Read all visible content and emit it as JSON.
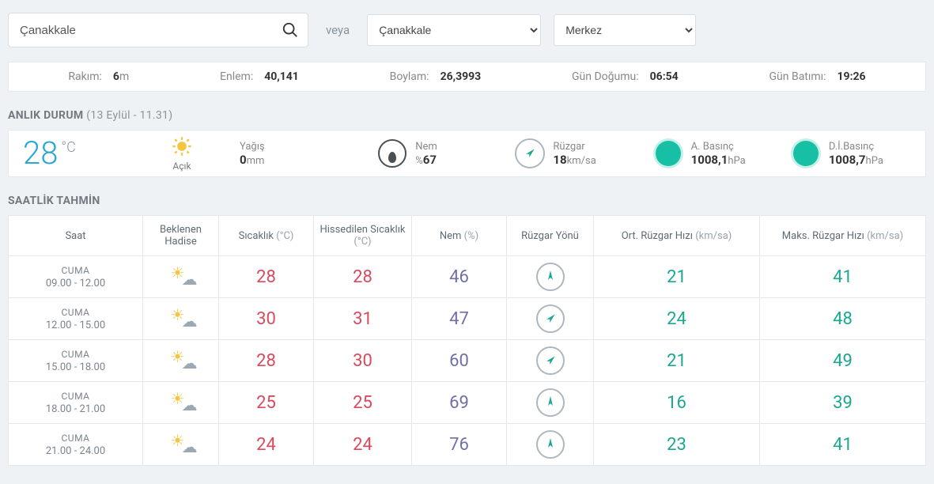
{
  "colors": {
    "page_bg": "#eef2f5",
    "panel_bg": "#ffffff",
    "border": "#e3e8ec",
    "text": "#666666",
    "accent_blue": "#2aa7d6",
    "temp_red": "#d94a5c",
    "humidity_purple": "#6f6fa6",
    "wind_teal": "#1aa890",
    "pressure_dot": "#17bfa4",
    "wind_arrow": "#1aa890"
  },
  "search": {
    "value": "Çanakkale"
  },
  "or_label": "veya",
  "province": {
    "selected": "Çanakkale"
  },
  "district": {
    "selected": "Merkez"
  },
  "geo": {
    "rakim": {
      "label": "Rakım:",
      "value": "6",
      "unit": "m"
    },
    "enlem": {
      "label": "Enlem:",
      "value": "40,141",
      "unit": ""
    },
    "boylam": {
      "label": "Boylam:",
      "value": "26,3993",
      "unit": ""
    },
    "gundogumu": {
      "label": "Gün Doğumu:",
      "value": "06:54",
      "unit": ""
    },
    "gunbatimi": {
      "label": "Gün Batımı:",
      "value": "19:26",
      "unit": ""
    }
  },
  "current": {
    "title": "ANLIK DURUM",
    "subtitle": "(13 Eylül - 11.31)",
    "temp": "28",
    "temp_unit": "°C",
    "cond_icon": "sun",
    "cond_text": "Açık",
    "precip": {
      "label": "Yağış",
      "value": "0",
      "unit": "mm"
    },
    "humidity": {
      "label": "Nem",
      "prefix": "%",
      "value": "67"
    },
    "wind": {
      "label": "Rüzgar",
      "value": "18",
      "unit": "km/sa",
      "dir_deg": 45
    },
    "pressure_a": {
      "label": "A. Basınç",
      "value": "1008,1",
      "unit": "hPa"
    },
    "pressure_d": {
      "label": "D.İ.Basınç",
      "value": "1008,7",
      "unit": "hPa"
    }
  },
  "hourly": {
    "title": "SAATLİK TAHMİN",
    "headers": {
      "saat": "Saat",
      "hadise": "Beklenen Hadise",
      "sicaklik": "Sıcaklık",
      "sicaklik_u": "(°C)",
      "hissedilen": "Hissedilen Sıcaklık",
      "hissedilen_u": "(°C)",
      "nem": "Nem",
      "nem_u": "(%)",
      "ruzgar_yonu": "Rüzgar Yönü",
      "ort_ruzgar": "Ort. Rüzgar Hızı",
      "ort_ruzgar_u": "(km/sa)",
      "maks_ruzgar": "Maks. Rüzgar Hızı",
      "maks_ruzgar_u": "(km/sa)"
    },
    "rows": [
      {
        "day": "CUMA",
        "time": "09.00 - 12.00",
        "icon": "sun-partial",
        "temp": "28",
        "feels": "28",
        "hum": "46",
        "wdir_deg": 0,
        "wavg": "21",
        "wmax": "41"
      },
      {
        "day": "CUMA",
        "time": "12.00 - 15.00",
        "icon": "sun-partial",
        "temp": "30",
        "feels": "31",
        "hum": "47",
        "wdir_deg": 45,
        "wavg": "24",
        "wmax": "48"
      },
      {
        "day": "CUMA",
        "time": "15.00 - 18.00",
        "icon": "sun-partial",
        "temp": "28",
        "feels": "30",
        "hum": "60",
        "wdir_deg": 45,
        "wavg": "21",
        "wmax": "49"
      },
      {
        "day": "CUMA",
        "time": "18.00 - 21.00",
        "icon": "sun-partial",
        "temp": "25",
        "feels": "25",
        "hum": "69",
        "wdir_deg": 0,
        "wavg": "16",
        "wmax": "39"
      },
      {
        "day": "CUMA",
        "time": "21.00 - 24.00",
        "icon": "sun-partial",
        "temp": "24",
        "feels": "24",
        "hum": "76",
        "wdir_deg": 0,
        "wavg": "23",
        "wmax": "41"
      }
    ]
  }
}
